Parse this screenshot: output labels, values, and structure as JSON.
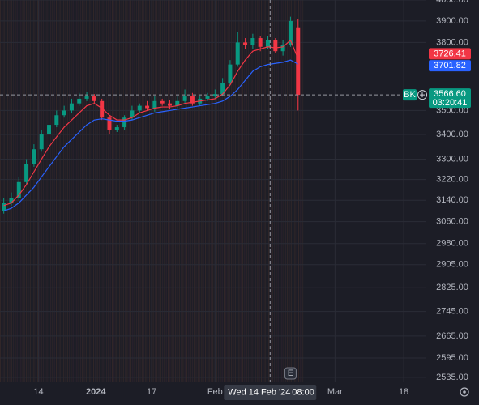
{
  "chart_data": {
    "type": "candlestick",
    "log_scale": true,
    "grid": true,
    "up_color": "#089981",
    "down_color": "#f23645",
    "open": [
      3100,
      3130,
      3150,
      3210,
      3280,
      3340,
      3400,
      3440,
      3480,
      3500,
      3530,
      3550,
      3560,
      3540,
      3470,
      3420,
      3430,
      3470,
      3500,
      3520,
      3510,
      3540,
      3530,
      3520,
      3540,
      3560,
      3530,
      3550,
      3560,
      3570,
      3620,
      3700,
      3800,
      3790,
      3820,
      3780,
      3810,
      3760,
      3790,
      3870
    ],
    "high": [
      3150,
      3170,
      3230,
      3300,
      3360,
      3420,
      3460,
      3500,
      3520,
      3550,
      3575,
      3580,
      3570,
      3550,
      3480,
      3440,
      3480,
      3520,
      3530,
      3540,
      3560,
      3550,
      3545,
      3560,
      3590,
      3575,
      3560,
      3575,
      3590,
      3640,
      3720,
      3850,
      3820,
      3840,
      3830,
      3830,
      3820,
      3810,
      3920,
      3910
    ],
    "low": [
      3090,
      3120,
      3140,
      3200,
      3270,
      3330,
      3390,
      3430,
      3470,
      3490,
      3520,
      3540,
      3530,
      3460,
      3400,
      3410,
      3420,
      3460,
      3490,
      3500,
      3495,
      3520,
      3505,
      3510,
      3530,
      3520,
      3520,
      3540,
      3550,
      3560,
      3610,
      3690,
      3770,
      3770,
      3760,
      3770,
      3750,
      3740,
      3780,
      3500
    ],
    "close": [
      3130,
      3150,
      3210,
      3280,
      3340,
      3400,
      3440,
      3480,
      3500,
      3530,
      3550,
      3560,
      3540,
      3470,
      3420,
      3430,
      3470,
      3500,
      3520,
      3510,
      3540,
      3530,
      3520,
      3540,
      3560,
      3530,
      3550,
      3560,
      3570,
      3620,
      3700,
      3800,
      3790,
      3820,
      3780,
      3810,
      3760,
      3790,
      3900,
      3566.6
    ],
    "last_price_label": "3566.60",
    "last_price_tag": "BK",
    "countdown": "03:20:41",
    "moving_averages": [
      {
        "color": "#f23645",
        "values": [
          3120,
          3130,
          3160,
          3200,
          3250,
          3300,
          3350,
          3390,
          3430,
          3460,
          3490,
          3520,
          3530,
          3510,
          3480,
          3460,
          3460,
          3470,
          3490,
          3500,
          3510,
          3515,
          3515,
          3520,
          3530,
          3535,
          3540,
          3545,
          3550,
          3570,
          3610,
          3670,
          3720,
          3760,
          3770,
          3780,
          3775,
          3780,
          3810,
          3726.41
        ]
      },
      {
        "color": "#2962ff",
        "values": [
          3100,
          3110,
          3130,
          3160,
          3190,
          3230,
          3270,
          3310,
          3350,
          3380,
          3410,
          3440,
          3460,
          3465,
          3460,
          3455,
          3455,
          3460,
          3470,
          3480,
          3490,
          3495,
          3500,
          3505,
          3510,
          3515,
          3520,
          3525,
          3530,
          3540,
          3560,
          3590,
          3630,
          3670,
          3690,
          3700,
          3705,
          3710,
          3720,
          3701.82
        ]
      }
    ],
    "xlim": [
      -0.5,
      56
    ],
    "xticks": [
      {
        "value": 4.6,
        "label": "14"
      },
      {
        "value": 12.2,
        "label": "2024"
      },
      {
        "value": 19.6,
        "label": "17"
      },
      {
        "value": 28,
        "label": "Feb"
      },
      {
        "value": 43.9,
        "label": "Mar"
      },
      {
        "value": 53,
        "label": "18"
      }
    ],
    "ylim": [
      2520,
      4000
    ],
    "yticks": [
      {
        "value": 4000,
        "label": "4000.00"
      },
      {
        "value": 3900,
        "label": "3900.00"
      },
      {
        "value": 3800,
        "label": "3800.00"
      },
      {
        "value": 3500,
        "label": "3500.00"
      },
      {
        "value": 3400,
        "label": "3400.00"
      },
      {
        "value": 3300,
        "label": "3300.00"
      },
      {
        "value": 3220,
        "label": "3220.00"
      },
      {
        "value": 3140,
        "label": "3140.00"
      },
      {
        "value": 3060,
        "label": "3060.00"
      },
      {
        "value": 2980,
        "label": "2980.00"
      },
      {
        "value": 2905,
        "label": "2905.00"
      },
      {
        "value": 2825,
        "label": "2825.00"
      },
      {
        "value": 2745,
        "label": "2745.00"
      },
      {
        "value": 2665,
        "label": "2665.00"
      },
      {
        "value": 2595,
        "label": "2595.00"
      },
      {
        "value": 2535,
        "label": "2535.00"
      }
    ],
    "crosshair": {
      "x": 35.3,
      "date": "Wed 14 Feb '24",
      "time": "08:00"
    },
    "event_marker": {
      "x": 38,
      "label": "E"
    }
  }
}
